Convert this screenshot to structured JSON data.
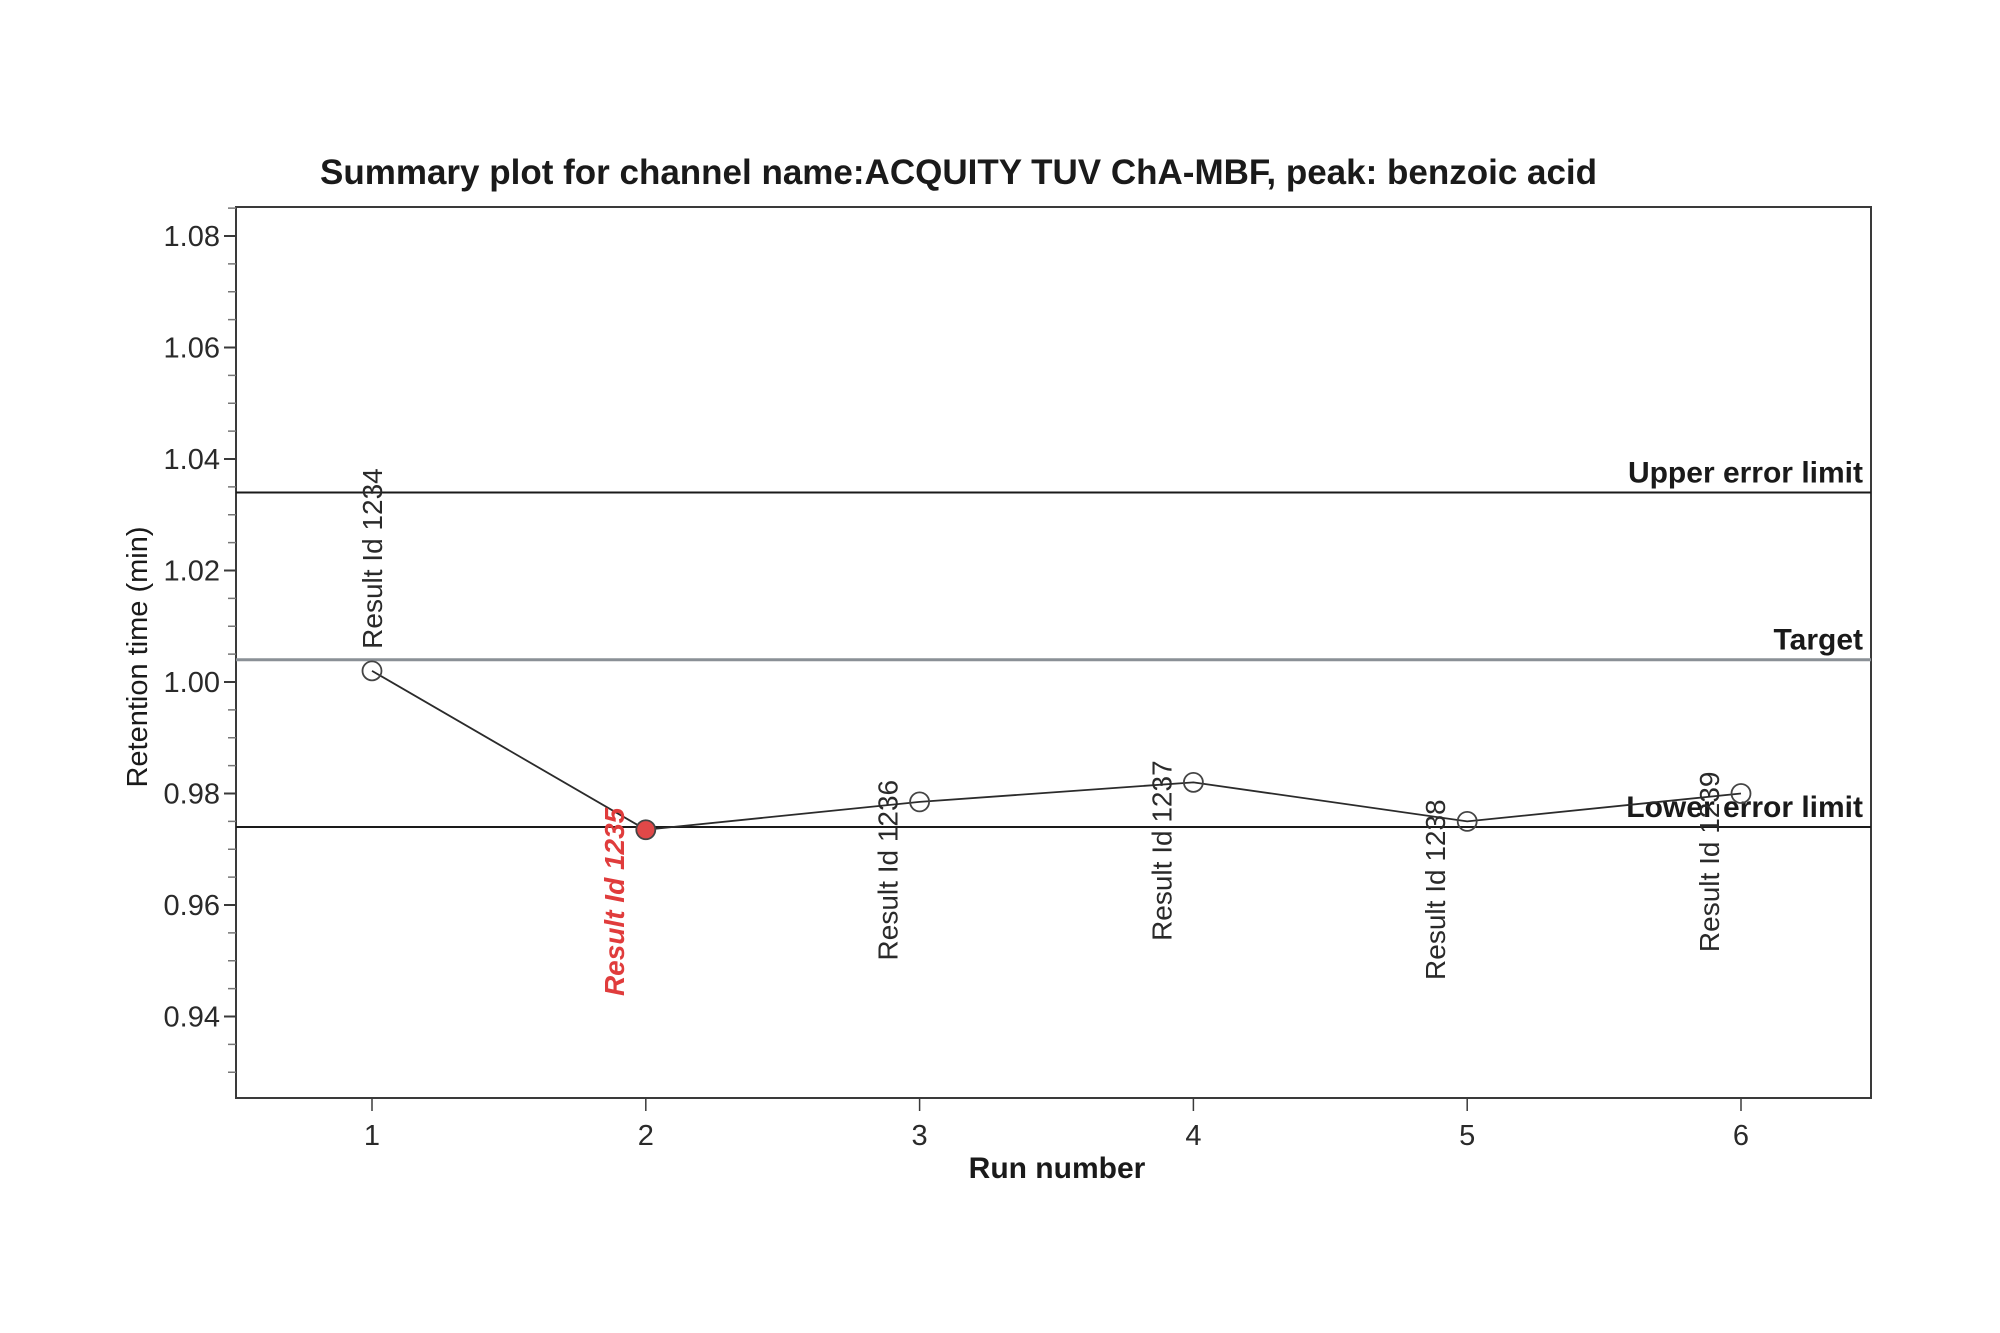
{
  "chart_data": {
    "type": "line",
    "title": "Summary plot for channel name:ACQUITY TUV ChA-MBF, peak: benzoic acid",
    "xlabel": "Run number",
    "ylabel": "Retention time (min)",
    "x": [
      1,
      2,
      3,
      4,
      5,
      6
    ],
    "x_ticks": [
      "1",
      "2",
      "3",
      "4",
      "5",
      "6"
    ],
    "xlim": [
      0.5,
      6.5
    ],
    "y_ticks": [
      "1.08",
      "1.06",
      "1.04",
      "1.02",
      "1.00",
      "0.98",
      "0.96",
      "0.94"
    ],
    "ylim": [
      0.925,
      1.086
    ],
    "grid": false,
    "series": [
      {
        "name": "Retention time",
        "values": [
          1.002,
          0.9735,
          0.9785,
          0.982,
          0.975,
          0.98
        ],
        "point_labels": [
          "Result Id 1234",
          "Result Id 1235",
          "Result Id 1236",
          "Result Id 1237",
          "Result Id 1238",
          "Result Id 1239"
        ],
        "flagged": [
          false,
          true,
          false,
          false,
          false,
          false
        ]
      }
    ],
    "reference_lines": [
      {
        "label": "Upper error limit",
        "value": 1.034,
        "color": "#1a1a1a"
      },
      {
        "label": "Target",
        "value": 1.004,
        "color": "#8a9096"
      },
      {
        "label": "Lower error limit",
        "value": 0.974,
        "color": "#1a1a1a"
      }
    ],
    "colors": {
      "line": "#2b2b2b",
      "marker_fill": "#ffffff",
      "marker_stroke": "#444444",
      "flagged_fill": "#e04848",
      "flagged_text": "#e03c3c"
    }
  }
}
